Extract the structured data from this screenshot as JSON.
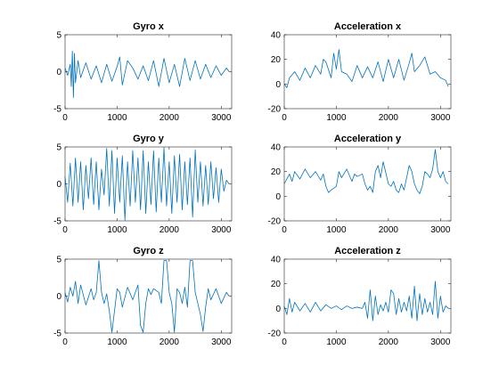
{
  "figure": {
    "background": "#ffffff",
    "line_color": "#0072BD"
  },
  "chart_data": [
    {
      "type": "line",
      "title": "Gyro x",
      "xlabel": "",
      "ylabel": "",
      "xlim": [
        0,
        3200
      ],
      "ylim": [
        -5,
        5
      ],
      "xticks": [
        0,
        1000,
        2000,
        3000
      ],
      "yticks": [
        -5,
        0,
        5
      ],
      "grid": false,
      "series": [
        {
          "x": [
            0,
            50,
            100,
            120,
            140,
            160,
            180,
            200,
            250,
            300,
            400,
            500,
            600,
            700,
            800,
            900,
            1000,
            1050,
            1100,
            1200,
            1300,
            1400,
            1500,
            1600,
            1700,
            1800,
            1900,
            2000,
            2100,
            2200,
            2300,
            2400,
            2500,
            2600,
            2700,
            2800,
            2900,
            3000,
            3100,
            3150
          ],
          "y": [
            0.5,
            -0.5,
            1.0,
            -2.0,
            2.8,
            -3.5,
            2.5,
            -1.5,
            1.5,
            -0.8,
            1.2,
            -1.0,
            0.8,
            -1.5,
            1.0,
            -1.3,
            0.7,
            2.0,
            -1.8,
            1.5,
            0.5,
            -1.0,
            0.8,
            -1.2,
            1.5,
            -2.0,
            1.8,
            -1.5,
            1.0,
            -2.0,
            1.8,
            -1.2,
            1.5,
            -1.0,
            1.0,
            -0.8,
            0.8,
            -0.5,
            0.5,
            0
          ]
        }
      ]
    },
    {
      "type": "line",
      "title": "Acceleration x",
      "xlabel": "",
      "ylabel": "",
      "xlim": [
        0,
        3200
      ],
      "ylim": [
        -20,
        40
      ],
      "xticks": [
        0,
        1000,
        2000,
        3000
      ],
      "yticks": [
        -20,
        0,
        20,
        40
      ],
      "grid": false,
      "series": [
        {
          "x": [
            0,
            50,
            100,
            200,
            300,
            400,
            500,
            600,
            700,
            750,
            800,
            900,
            950,
            1000,
            1050,
            1100,
            1200,
            1300,
            1400,
            1500,
            1600,
            1700,
            1800,
            1900,
            2000,
            2100,
            2200,
            2300,
            2400,
            2450,
            2500,
            2600,
            2700,
            2800,
            2900,
            3000,
            3100,
            3150
          ],
          "y": [
            0,
            -3,
            5,
            10,
            3,
            13,
            5,
            15,
            8,
            20,
            18,
            5,
            25,
            12,
            28,
            10,
            8,
            2,
            15,
            5,
            14,
            5,
            18,
            2,
            20,
            5,
            20,
            3,
            17,
            25,
            10,
            15,
            22,
            8,
            10,
            5,
            3,
            -2
          ]
        }
      ]
    },
    {
      "type": "line",
      "title": "Gyro y",
      "xlabel": "",
      "ylabel": "",
      "xlim": [
        0,
        3200
      ],
      "ylim": [
        -5,
        5
      ],
      "xticks": [
        0,
        1000,
        2000,
        3000
      ],
      "yticks": [
        -5,
        0,
        5
      ],
      "grid": false,
      "series": [
        {
          "x": [
            0,
            50,
            100,
            150,
            200,
            250,
            300,
            350,
            400,
            450,
            500,
            550,
            600,
            650,
            700,
            750,
            800,
            850,
            900,
            950,
            1000,
            1050,
            1100,
            1150,
            1200,
            1250,
            1300,
            1350,
            1400,
            1450,
            1500,
            1550,
            1600,
            1650,
            1700,
            1750,
            1800,
            1850,
            1900,
            1950,
            2000,
            2050,
            2100,
            2150,
            2200,
            2250,
            2300,
            2350,
            2400,
            2450,
            2500,
            2550,
            2600,
            2650,
            2700,
            2750,
            2800,
            2850,
            2900,
            2950,
            3000,
            3050,
            3100,
            3150
          ],
          "y": [
            1.0,
            -2.5,
            2.8,
            -3.0,
            3.5,
            -2.5,
            3.0,
            -3.5,
            2.5,
            -2.0,
            3.5,
            -2.8,
            3.0,
            -3.5,
            2.0,
            -1.5,
            4.8,
            -3.0,
            4.5,
            -4.0,
            3.5,
            -2.5,
            3.8,
            -4.9,
            3.0,
            -3.0,
            4.5,
            -2.5,
            3.5,
            -3.5,
            4.5,
            -4.0,
            3.0,
            -2.8,
            4.5,
            -3.8,
            3.5,
            -2.5,
            4.9,
            -3.0,
            3.0,
            -4.0,
            3.8,
            -2.5,
            4.0,
            -3.5,
            3.0,
            -2.8,
            3.5,
            -4.5,
            4.6,
            -2.5,
            3.0,
            -3.0,
            2.5,
            -2.8,
            3.0,
            -2.0,
            2.2,
            -2.5,
            2.0,
            -1.0,
            0.5,
            0
          ]
        }
      ]
    },
    {
      "type": "line",
      "title": "Acceleration y",
      "xlabel": "",
      "ylabel": "",
      "xlim": [
        0,
        3200
      ],
      "ylim": [
        -20,
        40
      ],
      "xticks": [
        0,
        1000,
        2000,
        3000
      ],
      "yticks": [
        -20,
        0,
        20,
        40
      ],
      "grid": false,
      "series": [
        {
          "x": [
            0,
            50,
            100,
            150,
            200,
            300,
            400,
            500,
            600,
            700,
            750,
            800,
            850,
            900,
            1000,
            1050,
            1100,
            1200,
            1300,
            1350,
            1400,
            1500,
            1550,
            1600,
            1650,
            1700,
            1750,
            1800,
            1850,
            1900,
            2000,
            2050,
            2100,
            2150,
            2200,
            2250,
            2300,
            2350,
            2400,
            2450,
            2500,
            2550,
            2600,
            2650,
            2700,
            2750,
            2800,
            2850,
            2900,
            2950,
            3000,
            3050,
            3100,
            3150
          ],
          "y": [
            10,
            14,
            18,
            12,
            20,
            14,
            22,
            15,
            20,
            13,
            18,
            8,
            3,
            5,
            8,
            20,
            15,
            22,
            12,
            18,
            16,
            18,
            10,
            5,
            8,
            3,
            20,
            25,
            15,
            28,
            10,
            8,
            12,
            5,
            3,
            10,
            5,
            15,
            25,
            20,
            10,
            5,
            2,
            8,
            20,
            18,
            15,
            22,
            38,
            20,
            15,
            20,
            12,
            10
          ]
        }
      ]
    },
    {
      "type": "line",
      "title": "Gyro z",
      "xlabel": "",
      "ylabel": "",
      "xlim": [
        0,
        3200
      ],
      "ylim": [
        -5,
        5
      ],
      "xticks": [
        0,
        1000,
        2000,
        3000
      ],
      "yticks": [
        -5,
        0,
        5
      ],
      "grid": false,
      "series": [
        {
          "x": [
            0,
            50,
            100,
            150,
            200,
            250,
            300,
            400,
            500,
            550,
            600,
            650,
            700,
            750,
            800,
            850,
            900,
            950,
            1000,
            1050,
            1100,
            1200,
            1300,
            1400,
            1450,
            1500,
            1550,
            1600,
            1650,
            1700,
            1800,
            1850,
            1900,
            1950,
            2000,
            2050,
            2100,
            2150,
            2200,
            2250,
            2300,
            2350,
            2400,
            2450,
            2500,
            2550,
            2600,
            2650,
            2700,
            2750,
            2800,
            2900,
            3000,
            3100,
            3150
          ],
          "y": [
            0.5,
            -0.8,
            1.2,
            0,
            2.0,
            -1.0,
            1.5,
            -1.2,
            1.0,
            -0.5,
            0.5,
            4.8,
            0.5,
            -1.0,
            0.3,
            -2.0,
            -4.9,
            -2.0,
            1.0,
            0.5,
            -1.5,
            1.2,
            -0.5,
            1.5,
            -4.0,
            -4.9,
            -1.0,
            1.0,
            0.2,
            1.0,
            0.5,
            -1.0,
            4.8,
            4.8,
            0.5,
            -1.0,
            -4.9,
            1.0,
            0.5,
            -1.0,
            1.2,
            -1.5,
            4.8,
            4.8,
            0.5,
            -1.0,
            -2.5,
            -4.8,
            -1.5,
            1.0,
            -0.5,
            1.0,
            -1.0,
            0.5,
            0
          ]
        }
      ]
    },
    {
      "type": "line",
      "title": "Acceleration z",
      "xlabel": "",
      "ylabel": "",
      "xlim": [
        0,
        3200
      ],
      "ylim": [
        -20,
        40
      ],
      "xticks": [
        0,
        1000,
        2000,
        3000
      ],
      "yticks": [
        -20,
        0,
        20,
        40
      ],
      "grid": false,
      "series": [
        {
          "x": [
            0,
            50,
            100,
            150,
            200,
            300,
            400,
            500,
            600,
            700,
            800,
            900,
            1000,
            1100,
            1200,
            1300,
            1400,
            1500,
            1550,
            1600,
            1650,
            1700,
            1750,
            1800,
            1850,
            1900,
            1950,
            2000,
            2050,
            2100,
            2150,
            2200,
            2250,
            2300,
            2350,
            2400,
            2450,
            2500,
            2550,
            2600,
            2650,
            2700,
            2750,
            2800,
            2850,
            2900,
            2950,
            3000,
            3050,
            3100,
            3150
          ],
          "y": [
            2,
            -5,
            8,
            -3,
            5,
            -2,
            4,
            -3,
            5,
            -2,
            3,
            0,
            2,
            -1,
            2,
            0,
            1,
            0,
            5,
            -8,
            15,
            -10,
            10,
            -5,
            3,
            -2,
            5,
            -3,
            15,
            12,
            -5,
            8,
            -3,
            5,
            -2,
            10,
            -8,
            18,
            -10,
            12,
            -5,
            8,
            -3,
            5,
            -5,
            22,
            -8,
            10,
            -3,
            2,
            0
          ]
        }
      ]
    }
  ]
}
